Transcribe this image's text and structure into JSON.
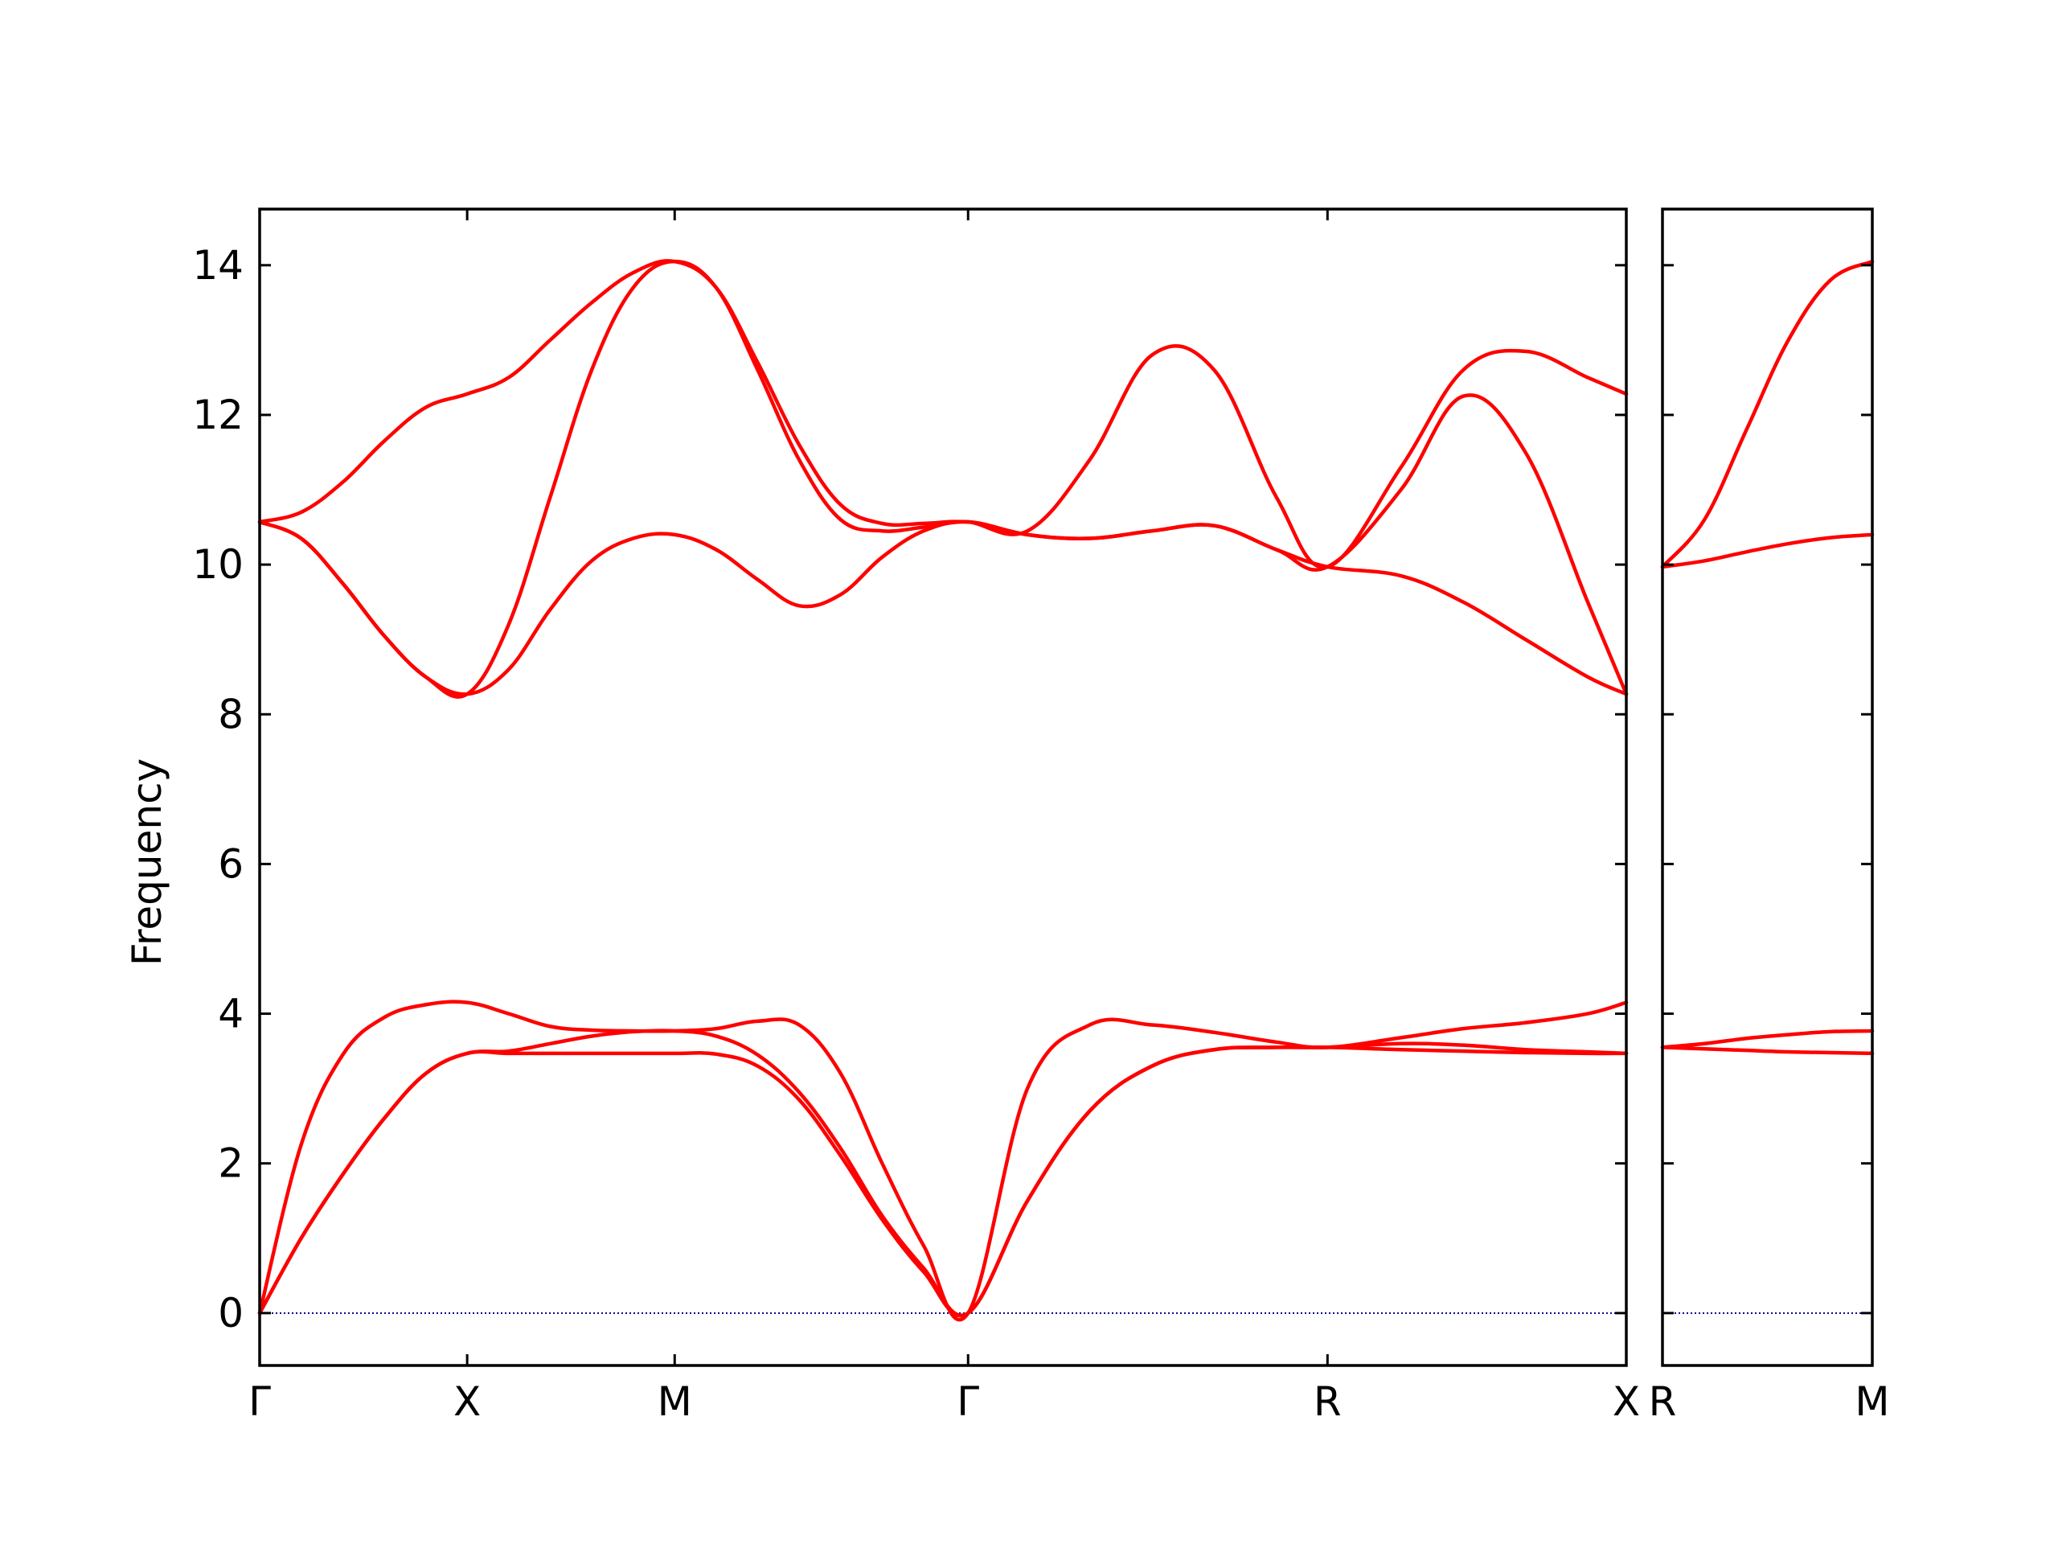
{
  "chart_data": {
    "type": "line",
    "title": "",
    "xlabel": "",
    "ylabel": "Frequency",
    "ylim": [
      -0.7,
      14.75
    ],
    "yticks": [
      0,
      2,
      4,
      6,
      8,
      10,
      12,
      14
    ],
    "grid": false,
    "legend": "none",
    "line_color": "#ff0000",
    "zero_line_color": "#00008b",
    "panels": [
      {
        "xlim": [
          0,
          6.586
        ],
        "ticks": [
          {
            "x": 0,
            "label": "Γ"
          },
          {
            "x": 1.0,
            "label": "X"
          },
          {
            "x": 2.0,
            "label": "M"
          },
          {
            "x": 3.414,
            "label": "Γ"
          },
          {
            "x": 5.146,
            "label": "R"
          },
          {
            "x": 6.586,
            "label": "X"
          }
        ],
        "series": [
          {
            "x": [
              0,
              0.2,
              0.4,
              0.6,
              0.8,
              1.0,
              1.2,
              1.4,
              1.6,
              1.8,
              2.0,
              2.2,
              2.4,
              2.6,
              2.8,
              3.0,
              3.2,
              3.414,
              3.7,
              4.0,
              4.3,
              4.6,
              4.9,
              5.146,
              5.5,
              5.8,
              6.1,
              6.4,
              6.586
            ],
            "y": [
              0,
              1.0,
              1.85,
              2.6,
              3.2,
              3.47,
              3.47,
              3.47,
              3.47,
              3.47,
              3.47,
              3.46,
              3.3,
              2.85,
              2.1,
              1.25,
              0.55,
              0,
              1.5,
              2.7,
              3.3,
              3.52,
              3.55,
              3.55,
              3.52,
              3.5,
              3.48,
              3.47,
              3.47
            ]
          },
          {
            "x": [
              0,
              0.2,
              0.4,
              0.6,
              0.8,
              1.0,
              1.2,
              1.4,
              1.6,
              1.8,
              2.0,
              2.2,
              2.4,
              2.6,
              2.8,
              3.0,
              3.2,
              3.414,
              3.7,
              4.0,
              4.3,
              4.6,
              4.9,
              5.146,
              5.5,
              5.8,
              6.1,
              6.4,
              6.586
            ],
            "y": [
              0,
              1.0,
              1.85,
              2.6,
              3.2,
              3.47,
              3.5,
              3.6,
              3.7,
              3.76,
              3.77,
              3.7,
              3.45,
              2.95,
              2.2,
              1.3,
              0.6,
              0,
              1.5,
              2.7,
              3.3,
              3.52,
              3.55,
              3.55,
              3.6,
              3.58,
              3.52,
              3.49,
              3.47
            ]
          },
          {
            "x": [
              0,
              0.2,
              0.4,
              0.6,
              0.8,
              1.0,
              1.2,
              1.4,
              1.6,
              1.8,
              2.0,
              2.2,
              2.4,
              2.6,
              2.8,
              3.0,
              3.2,
              3.414,
              3.7,
              4.0,
              4.3,
              4.6,
              4.9,
              5.146,
              5.5,
              5.8,
              6.1,
              6.4,
              6.586
            ],
            "y": [
              0,
              2.25,
              3.45,
              3.95,
              4.12,
              4.15,
              4.0,
              3.83,
              3.78,
              3.77,
              3.77,
              3.8,
              3.9,
              3.85,
              3.2,
              2.0,
              0.9,
              0,
              3.0,
              3.85,
              3.85,
              3.75,
              3.62,
              3.55,
              3.68,
              3.8,
              3.88,
              4.0,
              4.15
            ]
          },
          {
            "x": [
              0,
              0.2,
              0.4,
              0.6,
              0.8,
              1.0,
              1.2,
              1.4,
              1.6,
              1.8,
              2.0,
              2.2,
              2.4,
              2.6,
              2.8,
              3.0,
              3.2,
              3.414,
              3.7,
              4.0,
              4.3,
              4.6,
              4.9,
              5.146,
              5.5,
              5.8,
              6.1,
              6.4,
              6.586
            ],
            "y": [
              10.57,
              10.35,
              9.75,
              9.05,
              8.5,
              8.27,
              8.6,
              9.4,
              10.05,
              10.35,
              10.4,
              10.2,
              9.8,
              9.45,
              9.6,
              10.1,
              10.45,
              10.57,
              10.4,
              10.35,
              10.45,
              10.52,
              10.2,
              9.97,
              9.85,
              9.5,
              9.0,
              8.5,
              8.27
            ]
          },
          {
            "x": [
              0,
              0.2,
              0.4,
              0.6,
              0.8,
              1.0,
              1.2,
              1.4,
              1.6,
              1.8,
              2.0,
              2.2,
              2.4,
              2.6,
              2.8,
              3.0,
              3.2,
              3.414,
              3.7,
              4.0,
              4.3,
              4.6,
              4.9,
              5.146,
              5.5,
              5.8,
              6.1,
              6.4,
              6.586
            ],
            "y": [
              10.57,
              10.35,
              9.75,
              9.05,
              8.5,
              8.27,
              9.2,
              10.9,
              12.6,
              13.7,
              14.05,
              13.7,
              12.6,
              11.4,
              10.6,
              10.45,
              10.5,
              10.57,
              10.4,
              10.35,
              10.45,
              10.52,
              10.2,
              9.97,
              11.0,
              12.25,
              11.5,
              9.5,
              8.27
            ]
          },
          {
            "x": [
              0,
              0.2,
              0.4,
              0.6,
              0.8,
              1.0,
              1.2,
              1.4,
              1.6,
              1.8,
              2.0,
              2.2,
              2.4,
              2.6,
              2.8,
              3.0,
              3.2,
              3.414,
              3.7,
              4.0,
              4.3,
              4.6,
              4.9,
              5.146,
              5.5,
              5.8,
              6.1,
              6.4,
              6.586
            ],
            "y": [
              10.57,
              10.7,
              11.1,
              11.65,
              12.1,
              12.28,
              12.5,
              13.0,
              13.5,
              13.9,
              14.05,
              13.7,
              12.7,
              11.6,
              10.8,
              10.55,
              10.55,
              10.57,
              10.45,
              11.4,
              12.8,
              12.6,
              10.9,
              9.97,
              11.3,
              12.6,
              12.85,
              12.5,
              12.28
            ]
          }
        ]
      },
      {
        "xlim": [
          0,
          1.0
        ],
        "ticks": [
          {
            "x": 0,
            "label": "R"
          },
          {
            "x": 1.0,
            "label": "M"
          }
        ],
        "series": [
          {
            "x": [
              0,
              0.2,
              0.4,
              0.6,
              0.8,
              1.0
            ],
            "y": [
              3.55,
              3.53,
              3.51,
              3.49,
              3.48,
              3.47
            ]
          },
          {
            "x": [
              0,
              0.2,
              0.4,
              0.6,
              0.8,
              1.0
            ],
            "y": [
              3.55,
              3.6,
              3.67,
              3.72,
              3.76,
              3.77
            ]
          },
          {
            "x": [
              0,
              0.2,
              0.4,
              0.6,
              0.8,
              1.0
            ],
            "y": [
              9.97,
              10.05,
              10.17,
              10.28,
              10.36,
              10.4
            ]
          },
          {
            "x": [
              0,
              0.2,
              0.4,
              0.6,
              0.8,
              1.0
            ],
            "y": [
              9.97,
              10.6,
              11.8,
              13.0,
              13.8,
              14.05
            ]
          }
        ]
      }
    ]
  }
}
